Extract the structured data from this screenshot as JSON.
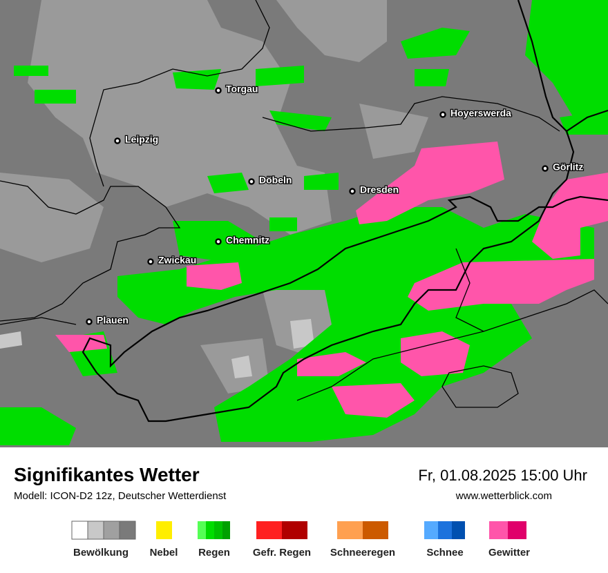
{
  "header": {
    "title": "Signifikantes Wetter",
    "model": "Modell: ICON-D2 12z, Deutscher Wetterdienst",
    "datetime": "Fr, 01.08.2025 15:00 Uhr",
    "website": "www.wetterblick.com"
  },
  "map": {
    "cities": [
      "Torgau",
      "Leipzig",
      "Hoyerswerda",
      "Görlitz",
      "Döbeln",
      "Dresden",
      "Chemnitz",
      "Zwickau",
      "Plauen"
    ]
  },
  "legend": {
    "items": [
      "Bewölkung",
      "Nebel",
      "Regen",
      "Gefr. Regen",
      "Schneeregen",
      "Schnee",
      "Gewitter"
    ]
  }
}
